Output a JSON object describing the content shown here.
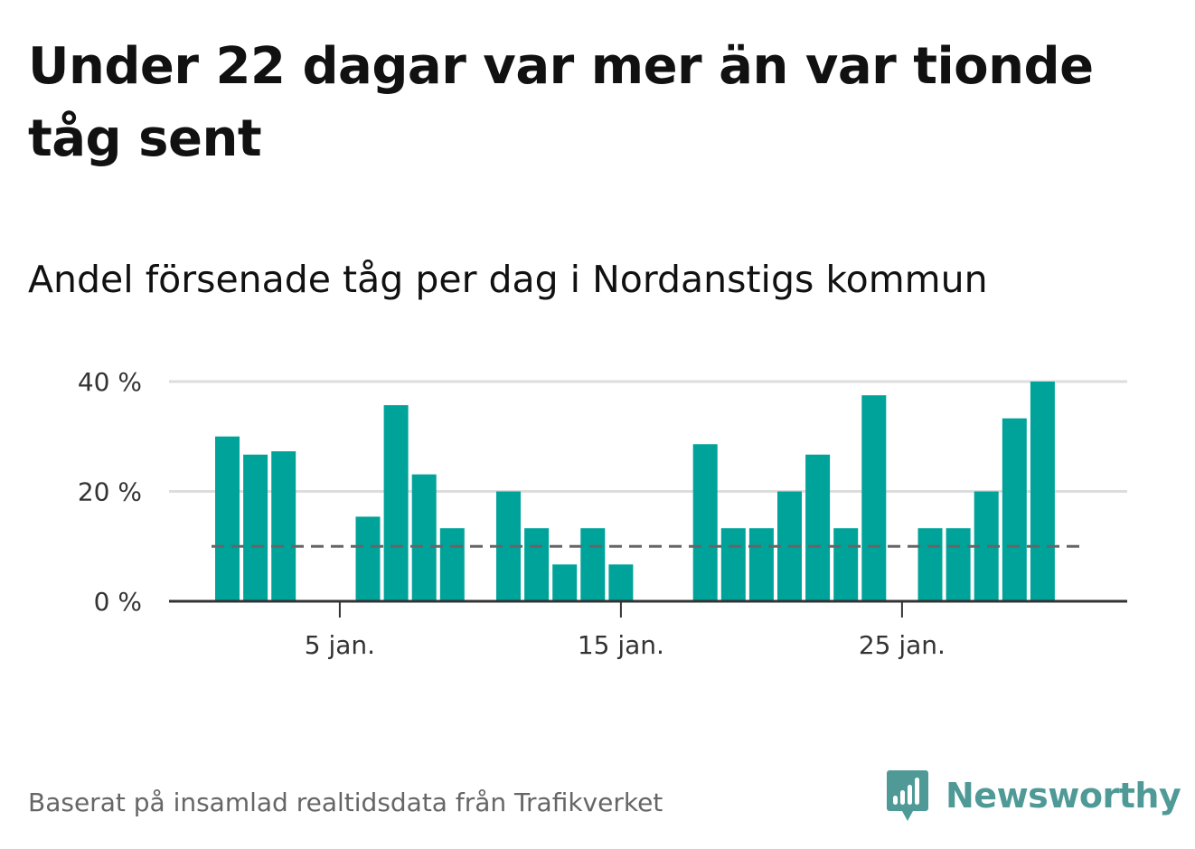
{
  "header": {
    "title": "Under 22 dagar var mer än var tionde tåg sent",
    "subtitle": "Andel försenade tåg per dag i Nordanstigs kommun"
  },
  "footer": {
    "source": "Baserat på insamlad realtidsdata från Trafikverket",
    "brand": "Newsworthy",
    "brand_icon": "newsworthy-logo-icon"
  },
  "colors": {
    "bar": "#00a39a",
    "reference_line": "#666666",
    "grid": "#dddddd",
    "axis": "#333333",
    "brand": "#4f9a97"
  },
  "chart_data": {
    "type": "bar",
    "x": [
      "1 jan.",
      "2 jan.",
      "3 jan.",
      "4 jan.",
      "5 jan.",
      "6 jan.",
      "7 jan.",
      "8 jan.",
      "9 jan.",
      "10 jan.",
      "11 jan.",
      "12 jan.",
      "13 jan.",
      "14 jan.",
      "15 jan.",
      "16 jan.",
      "17 jan.",
      "18 jan.",
      "19 jan.",
      "20 jan.",
      "21 jan.",
      "22 jan.",
      "23 jan.",
      "24 jan.",
      "25 jan.",
      "26 jan.",
      "27 jan.",
      "28 jan.",
      "29 jan.",
      "30 jan.",
      "31 jan."
    ],
    "values": [
      30,
      26.7,
      27.3,
      0,
      0,
      15.4,
      35.7,
      23.1,
      13.3,
      0,
      20,
      13.3,
      6.7,
      13.3,
      6.7,
      0,
      0,
      28.6,
      13.3,
      13.3,
      20,
      26.7,
      13.3,
      37.5,
      0,
      13.3,
      13.3,
      20,
      33.3,
      40,
      0
    ],
    "reference_line": 10,
    "ylim": [
      0,
      40
    ],
    "y_ticks": [
      {
        "value": 0,
        "label": "0 %"
      },
      {
        "value": 20,
        "label": "20 %"
      },
      {
        "value": 40,
        "label": "40 %"
      }
    ],
    "x_ticks": [
      {
        "index": 4,
        "label": "5 jan."
      },
      {
        "index": 14,
        "label": "15 jan."
      },
      {
        "index": 24,
        "label": "25 jan."
      }
    ],
    "grid": true,
    "legend": "none"
  }
}
